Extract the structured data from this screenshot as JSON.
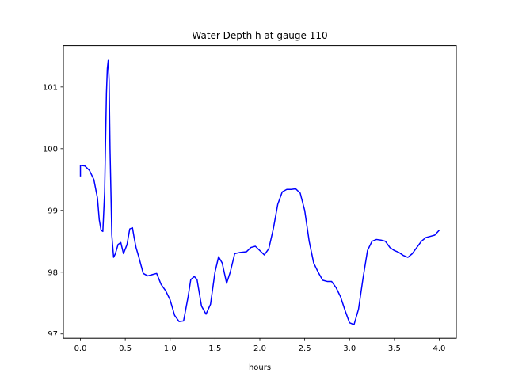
{
  "chart_data": {
    "type": "line",
    "title": "Water Depth h at gauge 110",
    "xlabel": "hours",
    "ylabel": "",
    "xlim": [
      -0.19,
      4.19
    ],
    "ylim": [
      96.93,
      101.67
    ],
    "xticks": [
      0.0,
      0.5,
      1.0,
      1.5,
      2.0,
      2.5,
      3.0,
      3.5,
      4.0
    ],
    "xtick_labels": [
      "0.0",
      "0.5",
      "1.0",
      "1.5",
      "2.0",
      "2.5",
      "3.0",
      "3.5",
      "4.0"
    ],
    "yticks": [
      97,
      98,
      99,
      100,
      101
    ],
    "ytick_labels": [
      "97",
      "98",
      "99",
      "100",
      "101"
    ],
    "grid": false,
    "legend": "none",
    "series": [
      {
        "color": "#0000ff",
        "x": [
          0.0,
          0.0,
          0.05,
          0.1,
          0.15,
          0.19,
          0.21,
          0.23,
          0.25,
          0.27,
          0.28,
          0.29,
          0.3,
          0.31,
          0.32,
          0.33,
          0.35,
          0.37,
          0.39,
          0.42,
          0.45,
          0.48,
          0.52,
          0.55,
          0.58,
          0.6,
          0.62,
          0.65,
          0.7,
          0.75,
          0.8,
          0.85,
          0.9,
          0.95,
          1.0,
          1.05,
          1.1,
          1.15,
          1.2,
          1.23,
          1.27,
          1.3,
          1.35,
          1.4,
          1.45,
          1.5,
          1.54,
          1.58,
          1.63,
          1.67,
          1.72,
          1.78,
          1.85,
          1.9,
          1.95,
          2.0,
          2.05,
          2.1,
          2.15,
          2.2,
          2.25,
          2.3,
          2.35,
          2.4,
          2.45,
          2.5,
          2.55,
          2.6,
          2.65,
          2.7,
          2.75,
          2.8,
          2.85,
          2.9,
          2.95,
          3.0,
          3.05,
          3.1,
          3.15,
          3.2,
          3.25,
          3.3,
          3.35,
          3.4,
          3.45,
          3.5,
          3.55,
          3.6,
          3.65,
          3.7,
          3.75,
          3.8,
          3.85,
          3.9,
          3.95,
          4.0
        ],
        "y": [
          99.55,
          99.73,
          99.72,
          99.65,
          99.5,
          99.2,
          98.85,
          98.68,
          98.66,
          99.3,
          100.1,
          100.9,
          101.3,
          101.43,
          101.1,
          100.0,
          98.6,
          98.24,
          98.3,
          98.45,
          98.48,
          98.3,
          98.45,
          98.7,
          98.72,
          98.55,
          98.4,
          98.25,
          97.98,
          97.94,
          97.96,
          97.98,
          97.8,
          97.7,
          97.55,
          97.3,
          97.2,
          97.21,
          97.6,
          97.88,
          97.93,
          97.88,
          97.45,
          97.32,
          97.48,
          98.0,
          98.25,
          98.15,
          97.82,
          98.0,
          98.3,
          98.32,
          98.33,
          98.4,
          98.42,
          98.35,
          98.28,
          98.38,
          98.7,
          99.1,
          99.3,
          99.34,
          99.34,
          99.35,
          99.28,
          99.0,
          98.5,
          98.15,
          98.0,
          97.87,
          97.85,
          97.85,
          97.75,
          97.6,
          97.38,
          97.18,
          97.15,
          97.4,
          97.9,
          98.35,
          98.5,
          98.53,
          98.52,
          98.5,
          98.4,
          98.35,
          98.32,
          98.27,
          98.24,
          98.3,
          98.4,
          98.5,
          98.56,
          98.58,
          98.6,
          98.68
        ]
      }
    ]
  }
}
